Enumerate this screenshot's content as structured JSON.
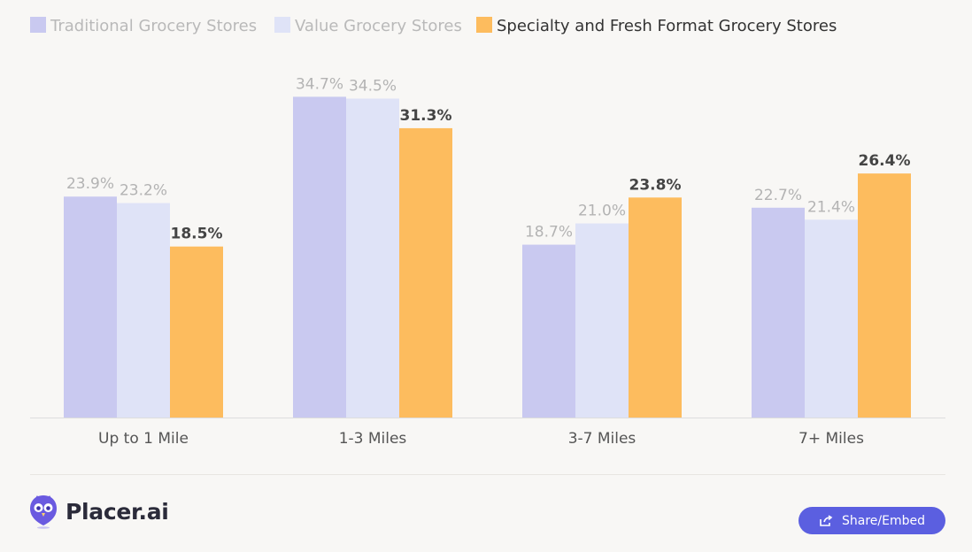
{
  "chart_data": {
    "type": "bar",
    "categories": [
      "Up to 1 Mile",
      "1-3 Miles",
      "3-7 Miles",
      "7+ Miles"
    ],
    "series": [
      {
        "name": "Traditional Grocery Stores",
        "values": [
          23.9,
          34.7,
          18.7,
          22.7
        ],
        "labels": [
          "23.9%",
          "34.7%",
          "18.7%",
          "22.7%"
        ],
        "color": "#c9c9f0",
        "label_color": "#b3b3b3",
        "emphasis": false
      },
      {
        "name": "Value Grocery Stores",
        "values": [
          23.2,
          34.5,
          21.0,
          21.4
        ],
        "labels": [
          "23.2%",
          "34.5%",
          "21.0%",
          "21.4%"
        ],
        "color": "#dfe3f7",
        "label_color": "#b3b3b3",
        "emphasis": false
      },
      {
        "name": "Specialty and Fresh Format Grocery Stores",
        "values": [
          18.5,
          31.3,
          23.8,
          26.4
        ],
        "labels": [
          "18.5%",
          "31.3%",
          "23.8%",
          "26.4%"
        ],
        "color": "#fdbc5e",
        "label_color": "#444444",
        "emphasis": true
      }
    ],
    "ylim": [
      0,
      35
    ],
    "grid": false,
    "legend_position": "top-left",
    "title": "",
    "xlabel": "",
    "ylabel": ""
  },
  "colors": {
    "legend_muted_text": "#b9b9b9",
    "legend_active_text": "#333333",
    "axis": "#dddddd",
    "brand_accent": "#5b5fe0"
  },
  "footer": {
    "brand_name": "Placer.ai",
    "brand_icon": "owl-logo-icon",
    "share_label": "Share/Embed",
    "share_icon": "share-icon"
  }
}
